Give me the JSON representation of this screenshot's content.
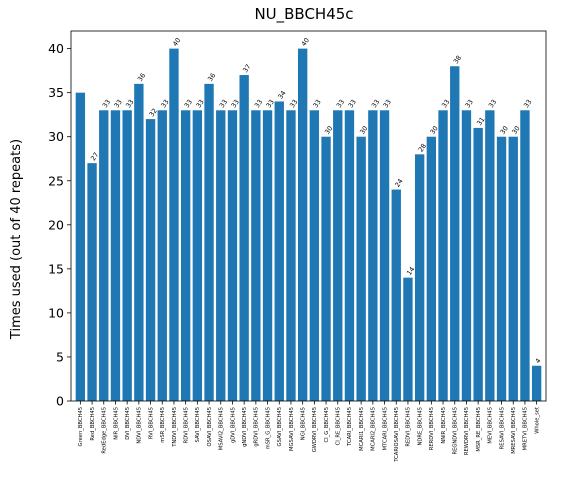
{
  "chart_data": {
    "type": "bar",
    "title": "NU_BBCH45c",
    "xlabel": "",
    "ylabel": "Times used (out of 40 repeats)",
    "ylim": [
      0,
      42
    ],
    "yticks": [
      0,
      5,
      10,
      15,
      20,
      25,
      30,
      35,
      40
    ],
    "bar_color": "#1f77b4",
    "categories": [
      "Green_BBCH45",
      "Red_BBCH45",
      "RedEdge_BBCH45",
      "NIR_BBCH45",
      "DVI_BBCH45",
      "NDVI_BBCH45",
      "RVI_BBCH45",
      "mSR_BBCH45",
      "TNDVI_BBCH45",
      "RDVI_BBCH45",
      "SAVI_BBCH45",
      "OSAVI_BBCH45",
      "MSAVI2_BBCH45",
      "gDVI_BBCH45",
      "gNDVI_BBCH45",
      "gRDVI_BBCH45",
      "mSR_G_BBCH45",
      "GSAVI_BBCH45",
      "MGSAVI_BBCH45",
      "NGI_BBCH45",
      "GWDRVI_BBCH45",
      "CI_G_BBCH45",
      "CI_RE_BBCH45",
      "TCARI_BBCH45",
      "MCARI1_BBCH45",
      "MCARI2_BBCH45",
      "MTCARI_BBCH45",
      "TCARIOSAVI_BBCH45",
      "REDVI_BBCH45",
      "NDRE_BBCH45",
      "RERDVI_BBCH45",
      "NNIR_BBCH45",
      "REGNDVI_BBCH45",
      "REWDRVI_BBCH45",
      "MSR_RE_BBCH45",
      "MEVI_BBCH45",
      "RESAVI_BBCH45",
      "MRESAVI_BBCH45",
      "MRETVI_BBCH45",
      "Whole_set"
    ],
    "values": [
      35,
      27,
      33,
      33,
      33,
      36,
      32,
      33,
      40,
      33,
      33,
      36,
      33,
      33,
      37,
      33,
      33,
      34,
      33,
      40,
      33,
      30,
      33,
      33,
      30,
      33,
      33,
      24,
      14,
      28,
      30,
      33,
      38,
      33,
      31,
      33,
      30,
      30,
      33,
      4
    ],
    "labeled_indices": [
      1,
      2,
      3,
      4,
      5,
      6,
      7,
      8,
      9,
      10,
      11,
      12,
      13,
      14,
      15,
      16,
      17,
      18,
      19,
      20,
      21,
      22,
      23,
      24,
      25,
      26,
      27,
      28,
      29,
      30,
      31,
      32,
      33,
      34,
      35,
      36,
      37,
      38,
      39
    ]
  }
}
